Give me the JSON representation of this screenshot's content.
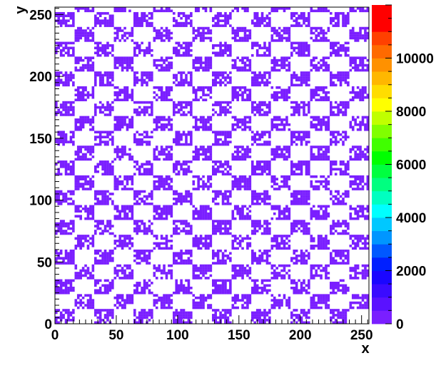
{
  "chart_data": {
    "type": "heatmap",
    "title": "",
    "xlabel": "x",
    "ylabel": "y",
    "xlim": [
      0,
      256
    ],
    "ylim": [
      0,
      256
    ],
    "xticks": [
      0,
      50,
      100,
      150,
      200,
      250
    ],
    "yticks": [
      0,
      50,
      100,
      150,
      200,
      250
    ],
    "pattern": {
      "kind": "checkerboard",
      "cell_width_x": 16,
      "cell_height_y": 12,
      "filled_bins_value_range": [
        1,
        500
      ],
      "empty_value": 0,
      "fill_fraction_in_filled_cells": 0.72
    },
    "color_scale": {
      "zlim": [
        0,
        12000
      ],
      "ticks": [
        0,
        2000,
        4000,
        6000,
        8000,
        10000
      ],
      "tick_labels": [
        "0",
        "2000",
        "4000",
        "6000",
        "8000",
        "10000"
      ],
      "palette": [
        "#7a1fff",
        "#5a12ff",
        "#3a0bff",
        "#1a06ff",
        "#0020ff",
        "#0058ff",
        "#0096ff",
        "#00c8ff",
        "#00ffff",
        "#00ffc0",
        "#00ff80",
        "#00ff40",
        "#00ff00",
        "#40ff00",
        "#80ff00",
        "#c0ff00",
        "#ffff00",
        "#ffdd00",
        "#ffb700",
        "#ff9100",
        "#ff6a00",
        "#ff4000",
        "#ff0000",
        "#ff0000"
      ]
    }
  }
}
